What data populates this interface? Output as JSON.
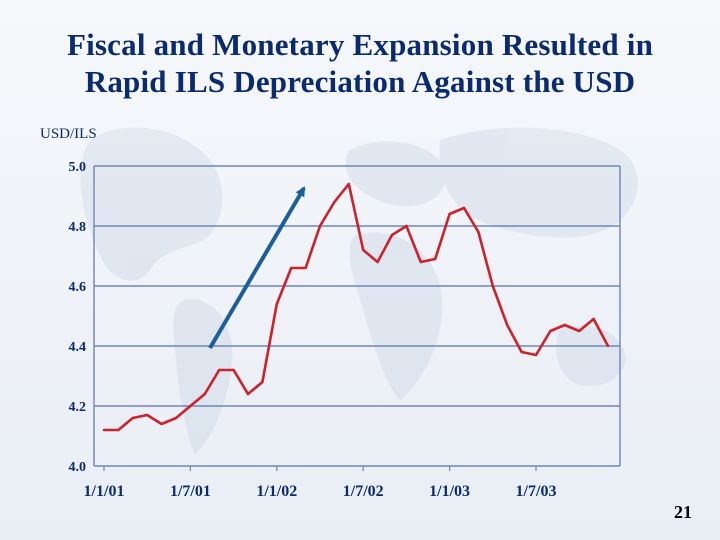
{
  "slide": {
    "title_line1": "Fiscal and Monetary Expansion Resulted in",
    "title_line2": "Rapid ILS Depreciation Against the USD",
    "page_number": "21"
  },
  "colors": {
    "title": "#0a2a72",
    "series_line": "#d0202a",
    "arrow": "#1b5e9e",
    "grid": "#6f86b7",
    "axis_text": "#0a2a72"
  },
  "chart_data": {
    "type": "line",
    "ylabel": "USD/ILS",
    "xlabel": "",
    "ylim": [
      4.0,
      5.0
    ],
    "yticks": [
      "4.0",
      "4.2",
      "4.4",
      "4.6",
      "4.8",
      "5.0"
    ],
    "xticks": [
      "1/1/01",
      "1/7/01",
      "1/1/02",
      "1/7/02",
      "1/1/03",
      "1/7/03"
    ],
    "grid": true,
    "annotation": "upward arrow indicating rapid depreciation (early 2002)",
    "series": [
      {
        "values": [
          4.12,
          4.12,
          4.16,
          4.17,
          4.14,
          4.16,
          4.2,
          4.24,
          4.32,
          4.32,
          4.24,
          4.28,
          4.54,
          4.66,
          4.66,
          4.8,
          4.88,
          4.94,
          4.72,
          4.68,
          4.77,
          4.8,
          4.68,
          4.69,
          4.84,
          4.86,
          4.78,
          4.6,
          4.47,
          4.38,
          4.37,
          4.45,
          4.47,
          4.45,
          4.49,
          4.4
        ]
      }
    ]
  }
}
